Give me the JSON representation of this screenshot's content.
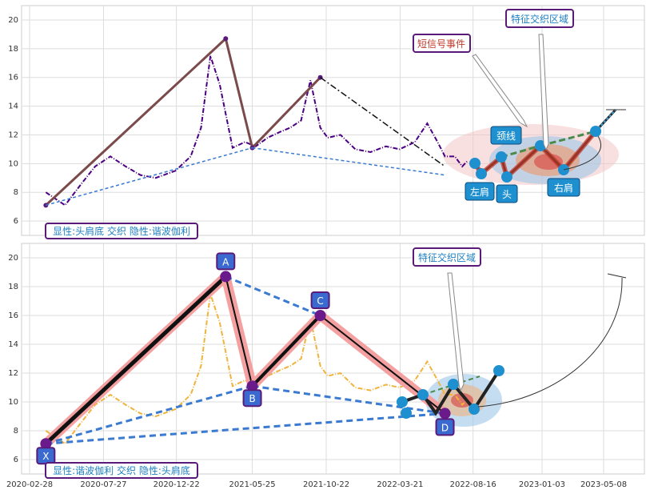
{
  "chart_data": [
    {
      "type": "line",
      "panel": "top",
      "ylim": [
        5,
        21
      ],
      "yticks": [
        "6",
        "8",
        "10",
        "12",
        "14",
        "16",
        "18",
        "20"
      ],
      "grid": true,
      "series": [
        {
          "style": "dash-dot",
          "color": "#4b0082",
          "x": [
            "2020-04-01",
            "2020-05-10",
            "2020-06-10",
            "2020-07-10",
            "2020-08-10",
            "2020-09-10",
            "2020-10-10",
            "2020-11-10",
            "2020-12-20",
            "2021-01-20",
            "2021-02-10",
            "2021-03-01",
            "2021-03-20",
            "2021-04-15",
            "2021-05-10",
            "2021-06-01",
            "2021-06-25",
            "2021-07-20",
            "2021-08-10",
            "2021-09-01",
            "2021-09-20",
            "2021-10-10",
            "2021-10-25",
            "2021-11-20",
            "2021-12-20",
            "2022-01-20",
            "2022-02-20",
            "2022-03-20",
            "2022-04-20",
            "2022-05-15",
            "2022-06-05",
            "2022-06-20",
            "2022-07-10",
            "2022-07-25",
            "2022-08-05"
          ],
          "y": [
            8.0,
            7.1,
            8.5,
            9.8,
            10.5,
            9.8,
            9.2,
            9.0,
            9.5,
            10.5,
            12.5,
            17.5,
            15.5,
            11.1,
            11.5,
            11.2,
            11.8,
            12.2,
            12.5,
            13.0,
            15.8,
            12.5,
            11.8,
            12.0,
            11.0,
            10.8,
            11.2,
            11.0,
            11.5,
            12.8,
            11.5,
            10.5,
            10.5,
            9.8,
            10.2
          ]
        }
      ],
      "abcd_lines": [
        {
          "x": [
            "2020-04-01",
            "2021-04-01",
            "2021-05-25",
            "2021-10-10"
          ],
          "y": [
            7.1,
            18.7,
            11.1,
            16.0
          ],
          "color": "#7b4b4b"
        }
      ],
      "annotations": [
        {
          "text": "短信号事件",
          "color": "#c0392b"
        },
        {
          "text": "特征交织区域",
          "color": "#1e7fc0"
        },
        {
          "text": "颈线",
          "color": "#ffffff"
        },
        {
          "text": "左肩",
          "color": "#ffffff"
        },
        {
          "text": "头",
          "color": "#ffffff"
        },
        {
          "text": "右肩",
          "color": "#ffffff"
        }
      ],
      "caption": "显性:头肩底 交织 隐性:谐波伽利"
    },
    {
      "type": "line",
      "panel": "bottom",
      "ylim": [
        5,
        21
      ],
      "yticks": [
        "6",
        "8",
        "10",
        "12",
        "14",
        "16",
        "18",
        "20"
      ],
      "grid": true,
      "series": [
        {
          "style": "dash-dot",
          "color": "#f0b43c",
          "x": [
            "2020-04-01",
            "2020-05-10",
            "2020-06-10",
            "2020-07-10",
            "2020-08-10",
            "2020-09-10",
            "2020-10-10",
            "2020-11-10",
            "2020-12-20",
            "2021-01-20",
            "2021-02-10",
            "2021-03-01",
            "2021-03-20",
            "2021-04-15",
            "2021-05-10",
            "2021-06-01",
            "2021-06-25",
            "2021-07-20",
            "2021-08-10",
            "2021-09-01",
            "2021-09-20",
            "2021-10-10",
            "2021-10-25",
            "2021-11-20",
            "2021-12-20",
            "2022-01-20",
            "2022-02-20",
            "2022-03-20",
            "2022-04-20",
            "2022-05-15",
            "2022-06-05",
            "2022-06-20",
            "2022-07-10",
            "2022-07-25",
            "2022-08-05"
          ],
          "y": [
            8.0,
            7.1,
            8.5,
            9.8,
            10.5,
            9.8,
            9.2,
            9.0,
            9.5,
            10.5,
            12.5,
            17.5,
            15.5,
            11.1,
            11.5,
            11.2,
            11.8,
            12.2,
            12.5,
            13.0,
            15.8,
            12.5,
            11.8,
            12.0,
            11.0,
            10.8,
            11.2,
            11.0,
            11.5,
            12.8,
            11.5,
            10.5,
            10.5,
            9.8,
            10.2
          ]
        }
      ],
      "points": [
        {
          "label": "X",
          "x": "2020-04-01",
          "y": 7.1
        },
        {
          "label": "A",
          "x": "2021-04-01",
          "y": 18.7
        },
        {
          "label": "B",
          "x": "2021-05-25",
          "y": 11.1
        },
        {
          "label": "C",
          "x": "2021-10-10",
          "y": 16.0
        },
        {
          "label": "D",
          "x": "2022-06-20",
          "y": 9.2
        }
      ],
      "annotations": [
        {
          "text": "特征交织区域",
          "color": "#1e7fc0"
        }
      ],
      "caption": "显性:谐波伽利 交织 隐性:头肩底"
    }
  ],
  "xticks": [
    "2020-02-28",
    "2020-07-27",
    "2020-12-22",
    "2021-05-25",
    "2021-10-22",
    "2022-03-21",
    "2022-08-16",
    "2023-01-03",
    "2023-05-08"
  ]
}
